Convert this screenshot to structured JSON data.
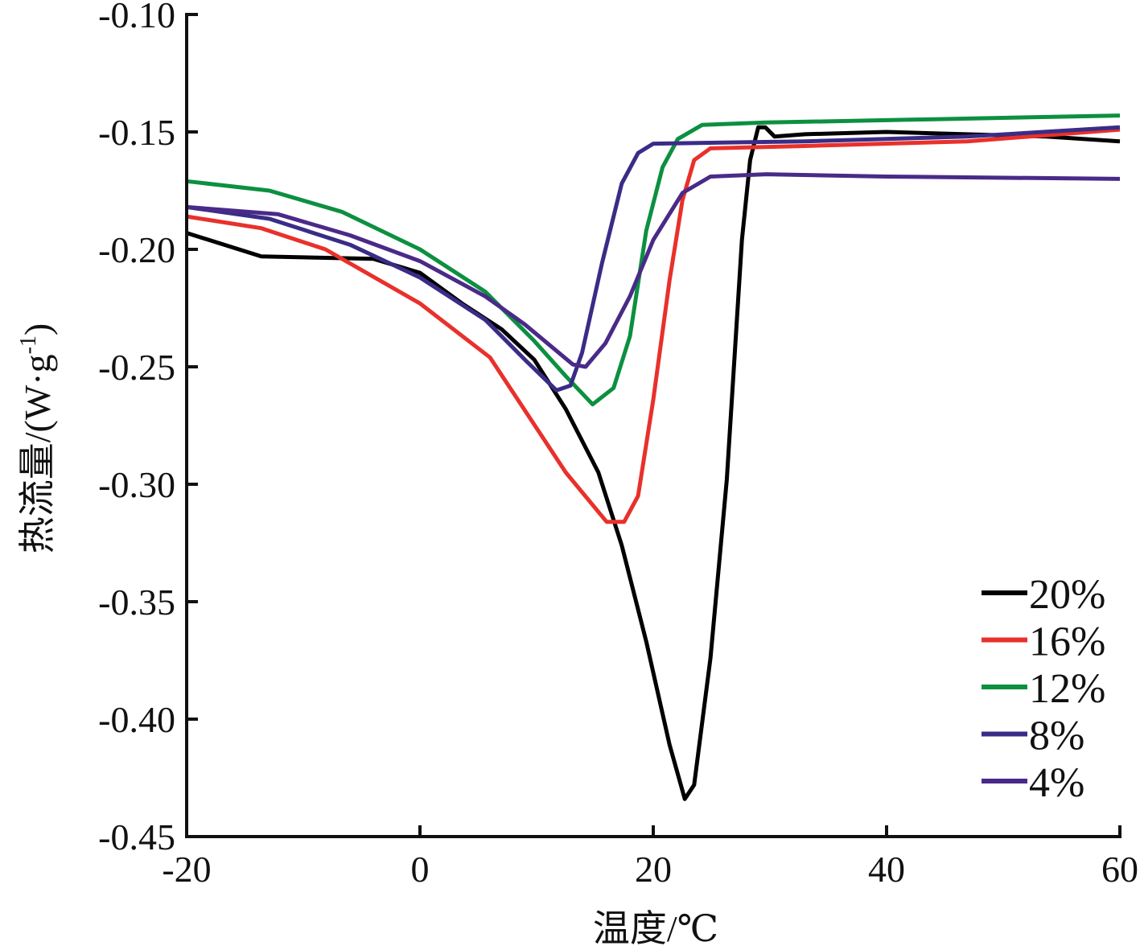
{
  "chart_data": {
    "type": "line",
    "title": "",
    "xlabel": "温度/℃",
    "ylabel_main": "热流量/(W·g",
    "ylabel_sup": "-1",
    "ylabel_end": ")",
    "xlim": [
      -20,
      60
    ],
    "ylim": [
      -0.45,
      -0.1
    ],
    "xticks": [
      -20,
      0,
      20,
      40,
      60
    ],
    "xtick_labels": [
      "-20",
      "0",
      "20",
      "40",
      "60"
    ],
    "yticks": [
      -0.1,
      -0.15,
      -0.2,
      -0.25,
      -0.3,
      -0.35,
      -0.4,
      -0.45
    ],
    "ytick_labels": [
      "-0.10",
      "-0.15",
      "-0.20",
      "-0.25",
      "-0.30",
      "-0.35",
      "-0.40",
      "-0.45"
    ],
    "grid": false,
    "legend_position": "bottom-right",
    "series": [
      {
        "name": "20%",
        "color": "#000000",
        "points": [
          [
            -20,
            -0.193
          ],
          [
            -13.6,
            -0.203
          ],
          [
            -4,
            -0.204
          ],
          [
            0,
            -0.21
          ],
          [
            3.6,
            -0.223
          ],
          [
            7,
            -0.234
          ],
          [
            9.8,
            -0.247
          ],
          [
            12.5,
            -0.268
          ],
          [
            15.3,
            -0.295
          ],
          [
            17.3,
            -0.326
          ],
          [
            19.4,
            -0.367
          ],
          [
            21.4,
            -0.411
          ],
          [
            22.7,
            -0.434
          ],
          [
            23.5,
            -0.428
          ],
          [
            24.9,
            -0.374
          ],
          [
            26.3,
            -0.298
          ],
          [
            27.6,
            -0.196
          ],
          [
            28.3,
            -0.162
          ],
          [
            29,
            -0.148
          ],
          [
            29.6,
            -0.148
          ],
          [
            30.4,
            -0.152
          ],
          [
            33,
            -0.151
          ],
          [
            40,
            -0.15
          ],
          [
            53.7,
            -0.152
          ],
          [
            60,
            -0.154
          ]
        ]
      },
      {
        "name": "16%",
        "color": "#e8312b",
        "points": [
          [
            -20,
            -0.186
          ],
          [
            -13.6,
            -0.191
          ],
          [
            -8.1,
            -0.2
          ],
          [
            0,
            -0.223
          ],
          [
            6,
            -0.246
          ],
          [
            12.5,
            -0.295
          ],
          [
            16,
            -0.316
          ],
          [
            17.5,
            -0.316
          ],
          [
            18.7,
            -0.305
          ],
          [
            20,
            -0.264
          ],
          [
            21.4,
            -0.213
          ],
          [
            22.5,
            -0.179
          ],
          [
            23.5,
            -0.162
          ],
          [
            24.9,
            -0.157
          ],
          [
            33,
            -0.156
          ],
          [
            46.9,
            -0.154
          ],
          [
            60,
            -0.149
          ]
        ]
      },
      {
        "name": "12%",
        "color": "#0c9040",
        "points": [
          [
            -20,
            -0.171
          ],
          [
            -12.9,
            -0.175
          ],
          [
            -6.7,
            -0.184
          ],
          [
            0,
            -0.2
          ],
          [
            5.6,
            -0.218
          ],
          [
            9.8,
            -0.239
          ],
          [
            12.5,
            -0.254
          ],
          [
            14.8,
            -0.266
          ],
          [
            16.6,
            -0.259
          ],
          [
            18,
            -0.237
          ],
          [
            19.4,
            -0.192
          ],
          [
            20.8,
            -0.165
          ],
          [
            22.1,
            -0.153
          ],
          [
            24.2,
            -0.147
          ],
          [
            29.7,
            -0.146
          ],
          [
            40,
            -0.145
          ],
          [
            60,
            -0.143
          ]
        ]
      },
      {
        "name": "8%",
        "color": "#3a2c86",
        "points": [
          [
            -20,
            -0.182
          ],
          [
            -12.9,
            -0.187
          ],
          [
            -6,
            -0.198
          ],
          [
            0,
            -0.212
          ],
          [
            5.6,
            -0.23
          ],
          [
            9,
            -0.247
          ],
          [
            11.7,
            -0.26
          ],
          [
            12.9,
            -0.258
          ],
          [
            13.9,
            -0.244
          ],
          [
            15.6,
            -0.206
          ],
          [
            17.3,
            -0.172
          ],
          [
            18.7,
            -0.159
          ],
          [
            20,
            -0.155
          ],
          [
            33,
            -0.154
          ],
          [
            46.9,
            -0.152
          ],
          [
            60,
            -0.148
          ]
        ]
      },
      {
        "name": "4%",
        "color": "#4a2a88",
        "points": [
          [
            -20,
            -0.182
          ],
          [
            -12.2,
            -0.185
          ],
          [
            -6,
            -0.194
          ],
          [
            0,
            -0.205
          ],
          [
            5.6,
            -0.22
          ],
          [
            9,
            -0.232
          ],
          [
            13.1,
            -0.249
          ],
          [
            14.2,
            -0.25
          ],
          [
            15.9,
            -0.24
          ],
          [
            18,
            -0.22
          ],
          [
            20,
            -0.196
          ],
          [
            22.5,
            -0.176
          ],
          [
            24.9,
            -0.169
          ],
          [
            29.7,
            -0.168
          ],
          [
            40,
            -0.169
          ],
          [
            60,
            -0.17
          ]
        ]
      }
    ]
  }
}
